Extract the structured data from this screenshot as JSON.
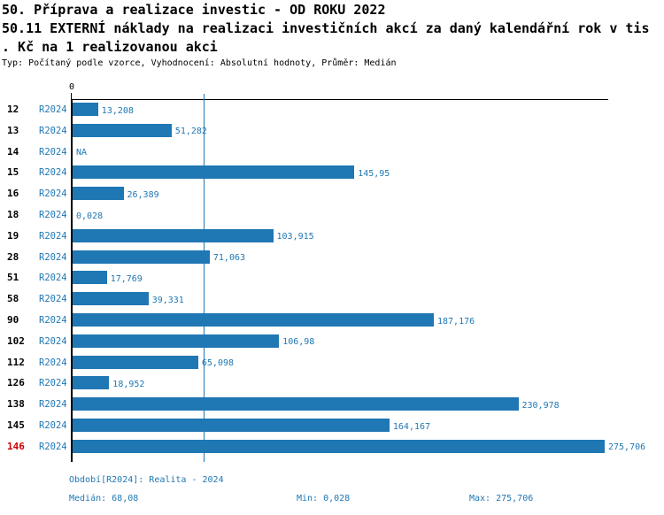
{
  "title": {
    "line1": "50. Příprava a realizace investic - OD ROKU 2022",
    "line2": "50.11 EXTERNÍ náklady na realizaci investičních akcí za daný kalendářní rok v tis",
    "line3": ". Kč na 1 realizovanou akci",
    "subtitle": "Typ: Počítaný podle vzorce, Vyhodnocení: Absolutní hodnoty, Průměr: Medián"
  },
  "chart_data": {
    "type": "bar",
    "orientation": "horizontal",
    "title": "50.11 EXTERNÍ náklady na realizaci investičních akcí za daný kalendářní rok v tis. Kč na 1 realizovanou akci",
    "x_axis": {
      "zero_label": "0",
      "min": 0,
      "max_shown": 278,
      "gridlines": false
    },
    "median": {
      "value": 68.08,
      "line_color": "#1f77b4"
    },
    "rows": [
      {
        "id": "12",
        "period": "R2024",
        "value": 13.208,
        "label": "13,208",
        "highlight": false
      },
      {
        "id": "13",
        "period": "R2024",
        "value": 51.282,
        "label": "51,282",
        "highlight": false
      },
      {
        "id": "14",
        "period": "R2024",
        "value": null,
        "label": "NA",
        "highlight": false
      },
      {
        "id": "15",
        "period": "R2024",
        "value": 145.95,
        "label": "145,95",
        "highlight": false
      },
      {
        "id": "16",
        "period": "R2024",
        "value": 26.389,
        "label": "26,389",
        "highlight": false
      },
      {
        "id": "18",
        "period": "R2024",
        "value": 0.028,
        "label": "0,028",
        "highlight": false
      },
      {
        "id": "19",
        "period": "R2024",
        "value": 103.915,
        "label": "103,915",
        "highlight": false
      },
      {
        "id": "28",
        "period": "R2024",
        "value": 71.063,
        "label": "71,063",
        "highlight": false
      },
      {
        "id": "51",
        "period": "R2024",
        "value": 17.769,
        "label": "17,769",
        "highlight": false
      },
      {
        "id": "58",
        "period": "R2024",
        "value": 39.331,
        "label": "39,331",
        "highlight": false
      },
      {
        "id": "90",
        "period": "R2024",
        "value": 187.176,
        "label": "187,176",
        "highlight": false
      },
      {
        "id": "102",
        "period": "R2024",
        "value": 106.98,
        "label": "106,98",
        "highlight": false
      },
      {
        "id": "112",
        "period": "R2024",
        "value": 65.098,
        "label": "65,098",
        "highlight": false
      },
      {
        "id": "126",
        "period": "R2024",
        "value": 18.952,
        "label": "18,952",
        "highlight": false
      },
      {
        "id": "138",
        "period": "R2024",
        "value": 230.978,
        "label": "230,978",
        "highlight": false
      },
      {
        "id": "145",
        "period": "R2024",
        "value": 164.167,
        "label": "164,167",
        "highlight": false
      },
      {
        "id": "146",
        "period": "R2024",
        "value": 275.706,
        "label": "275,706",
        "highlight": true
      }
    ]
  },
  "footer": {
    "period_line": "Období[R2024]: Realita - 2024",
    "median_label": "Medián: 68,08",
    "min_label": "Min: 0,028",
    "max_label": "Max: 275,706"
  },
  "colors": {
    "bar_blue": "#1f77b4",
    "text_blue": "#1f77b4",
    "highlight_red": "#cc0000",
    "axis_black": "#000000"
  }
}
